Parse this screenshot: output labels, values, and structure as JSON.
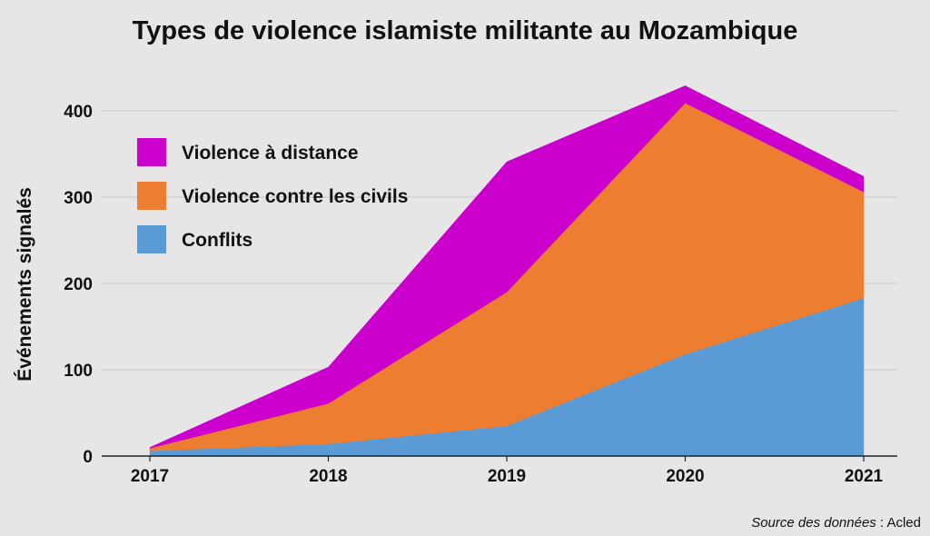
{
  "chart_data": {
    "type": "area",
    "stacked": true,
    "title": "Types de violence islamiste militante au Mozambique",
    "xlabel": "",
    "ylabel": "Événements signalés",
    "x": [
      "2017",
      "2018",
      "2019",
      "2020",
      "2021"
    ],
    "ylim": [
      0,
      400
    ],
    "yticks": [
      0,
      100,
      200,
      300,
      400
    ],
    "grid": true,
    "legend_position": "top-left",
    "series": [
      {
        "name": "Conflits",
        "color": "#5b9bd5",
        "values": [
          6,
          14,
          35,
          118,
          183
        ]
      },
      {
        "name": "Violence contre les civils",
        "color": "#ed7d31",
        "values": [
          3,
          47,
          155,
          291,
          123
        ]
      },
      {
        "name": "Violence à distance",
        "color": "#cc00cc",
        "values": [
          1,
          42,
          151,
          20,
          18
        ]
      }
    ],
    "legend_order": [
      "Violence à distance",
      "Violence contre les civils",
      "Conflits"
    ],
    "source_italic": "Source des données",
    "source_plain": " : Acled"
  }
}
